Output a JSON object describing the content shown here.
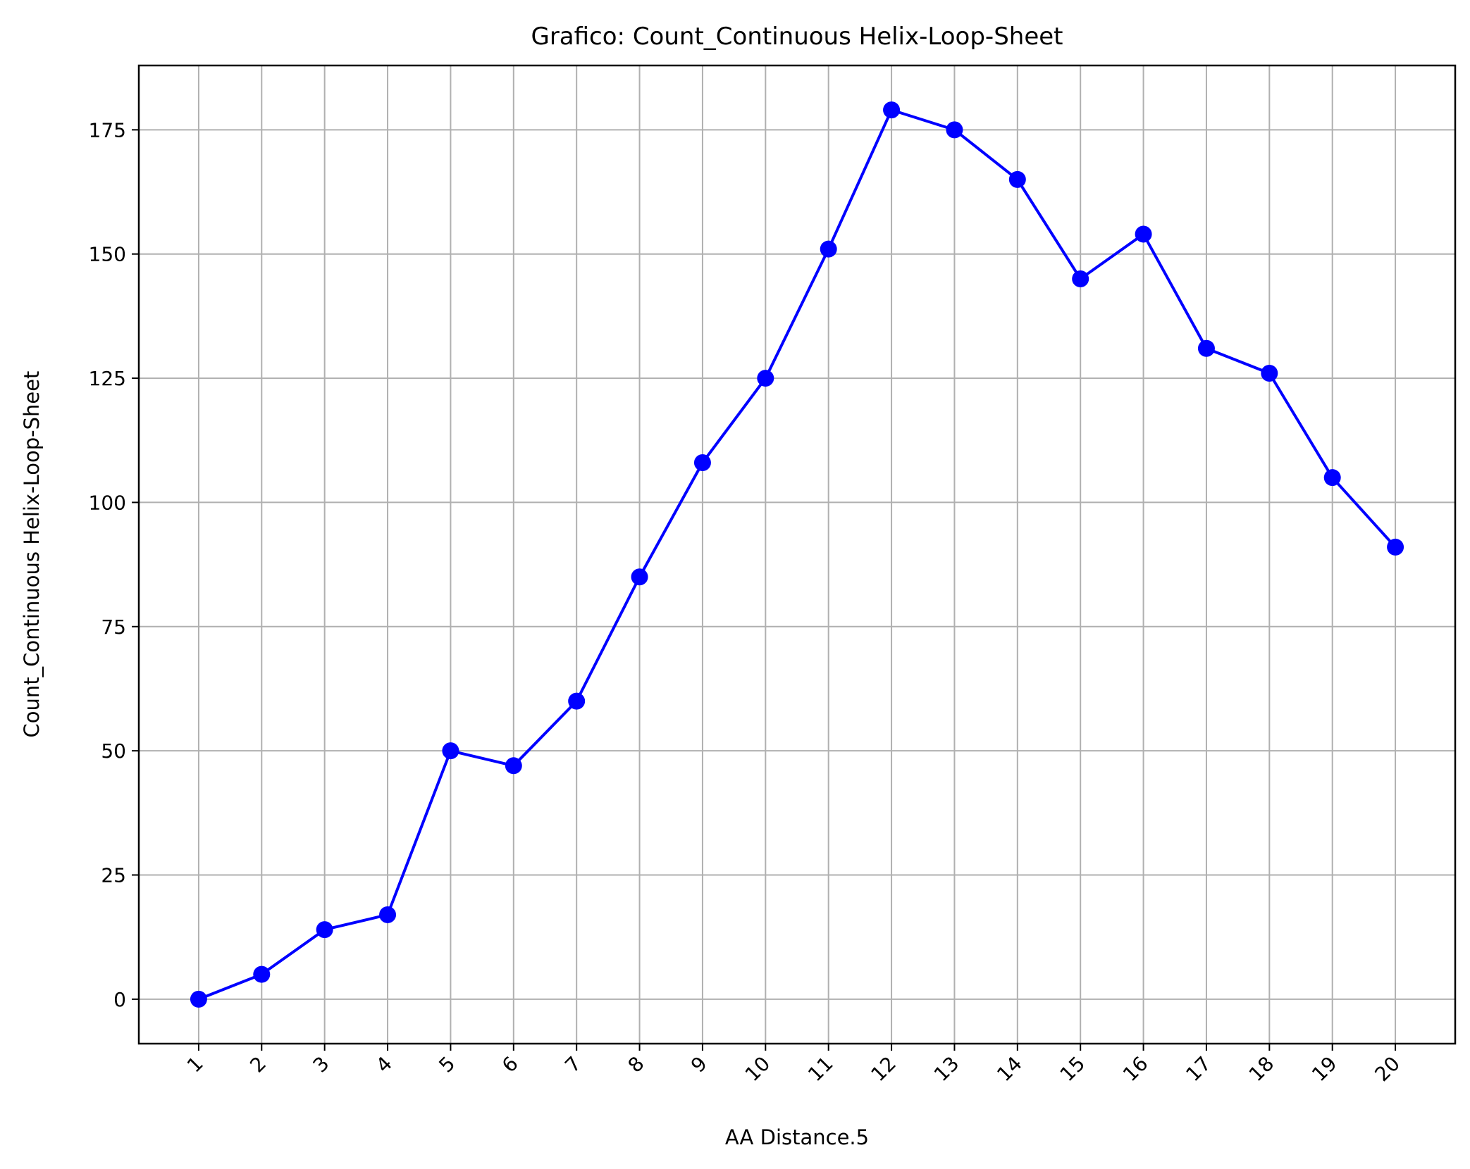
{
  "chart_data": {
    "type": "line",
    "title": "Grafico: Count_Continuous Helix-Loop-Sheet",
    "xlabel": "AA Distance.5",
    "ylabel": "Count_Continuous Helix-Loop-Sheet",
    "x": [
      "1",
      "2",
      "3",
      "4",
      "5",
      "6",
      "7",
      "8",
      "9",
      "10",
      "11",
      "12",
      "13",
      "14",
      "15",
      "16",
      "17",
      "18",
      "19",
      "20"
    ],
    "values": [
      0,
      5,
      14,
      17,
      50,
      47,
      60,
      85,
      108,
      125,
      151,
      179,
      175,
      165,
      145,
      154,
      131,
      126,
      105,
      91
    ],
    "yticks": [
      0,
      25,
      50,
      75,
      100,
      125,
      150,
      175
    ],
    "ylim": [
      -8.95,
      187.95
    ],
    "grid": true,
    "marker": "circle",
    "line_color": "#0000ff",
    "grid_color": "#b0b0b0",
    "xtick_rotation": 45
  }
}
